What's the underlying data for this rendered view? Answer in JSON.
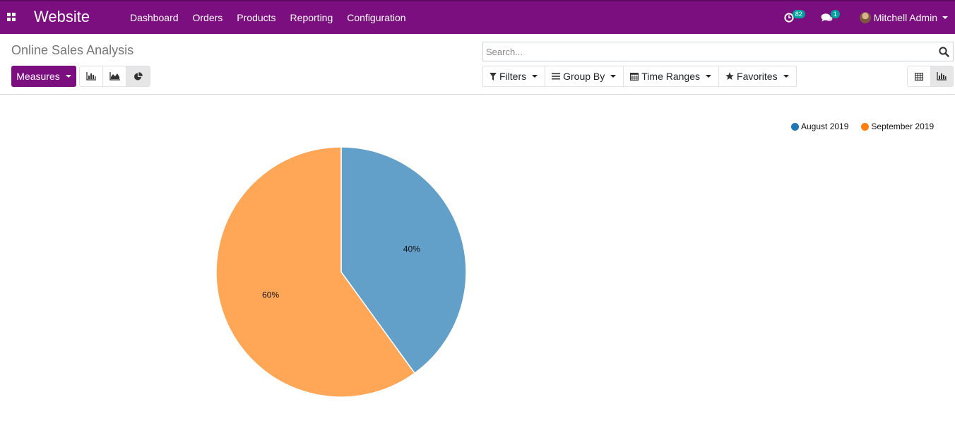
{
  "navbar": {
    "app_name": "Website",
    "menu": [
      {
        "label": "Dashboard"
      },
      {
        "label": "Orders"
      },
      {
        "label": "Products"
      },
      {
        "label": "Reporting"
      },
      {
        "label": "Configuration"
      }
    ],
    "activity_count": "82",
    "message_count": "1",
    "user_name": "Mitchell Admin"
  },
  "control_panel": {
    "breadcrumb": "Online Sales Analysis",
    "measures_label": "Measures",
    "search_placeholder": "Search...",
    "filters": [
      {
        "label": "Filters",
        "icon": "filter-icon"
      },
      {
        "label": "Group By",
        "icon": "bars-icon"
      },
      {
        "label": "Time Ranges",
        "icon": "calendar-icon"
      },
      {
        "label": "Favorites",
        "icon": "star-icon"
      }
    ],
    "graph_modes": [
      "bar-chart-icon",
      "area-chart-icon",
      "pie-chart-icon"
    ],
    "active_graph_mode": "pie",
    "views": [
      "pivot-view-icon",
      "graph-view-icon"
    ],
    "active_view": "graph"
  },
  "colors": {
    "brand": "#7c0f80",
    "badge": "#00a09d",
    "series_august": "#62a0ca",
    "series_september": "#ffa657",
    "legend_august": "#1f77b4",
    "legend_september": "#ff7f0e"
  },
  "chart_data": {
    "type": "pie",
    "labels": [
      "August 2019",
      "September 2019"
    ],
    "values": [
      40,
      60
    ],
    "data_labels": [
      "40%",
      "60%"
    ],
    "legend_position": "top-right"
  }
}
